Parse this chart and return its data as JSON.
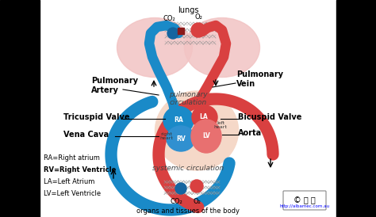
{
  "bg_color": "#ffffff",
  "lung_color": "#f2c4c4",
  "blue_color": "#1a8ac8",
  "blue_dark": "#1565a0",
  "red_color": "#d94040",
  "red_light": "#e87070",
  "pink_color": "#f0a8a8",
  "heart_bg": "#f5d8c8",
  "heart_border": "#e8b090",
  "title_lungs": "lungs",
  "title_pc": "pulmonary\ncirculation",
  "title_sc": "systemic circulation",
  "title_organs": "organs and tissues of the body",
  "label_pa": "Pulmonary\nArtery",
  "label_pv": "Pulmonary\nVein",
  "label_tv": "Tricuspid Valve",
  "label_vc": "Vena Cava",
  "label_bv": "Bicuspid Valve",
  "label_ao": "Aorta",
  "label_ra": "RA",
  "label_rv": "RV",
  "label_la": "LA",
  "label_lv": "LV",
  "label_rh": "right\nheart",
  "label_lh": "left\nheart",
  "legend_ra": "RA=Right atrium",
  "legend_rv": "RV=Right Ventricle",
  "legend_la": "LA=Left Atrium",
  "legend_lv": "LV=Left Ventricle",
  "co2_label": "CO₂",
  "o2_label": "O₂",
  "url_text": "http://albamec.com.au"
}
